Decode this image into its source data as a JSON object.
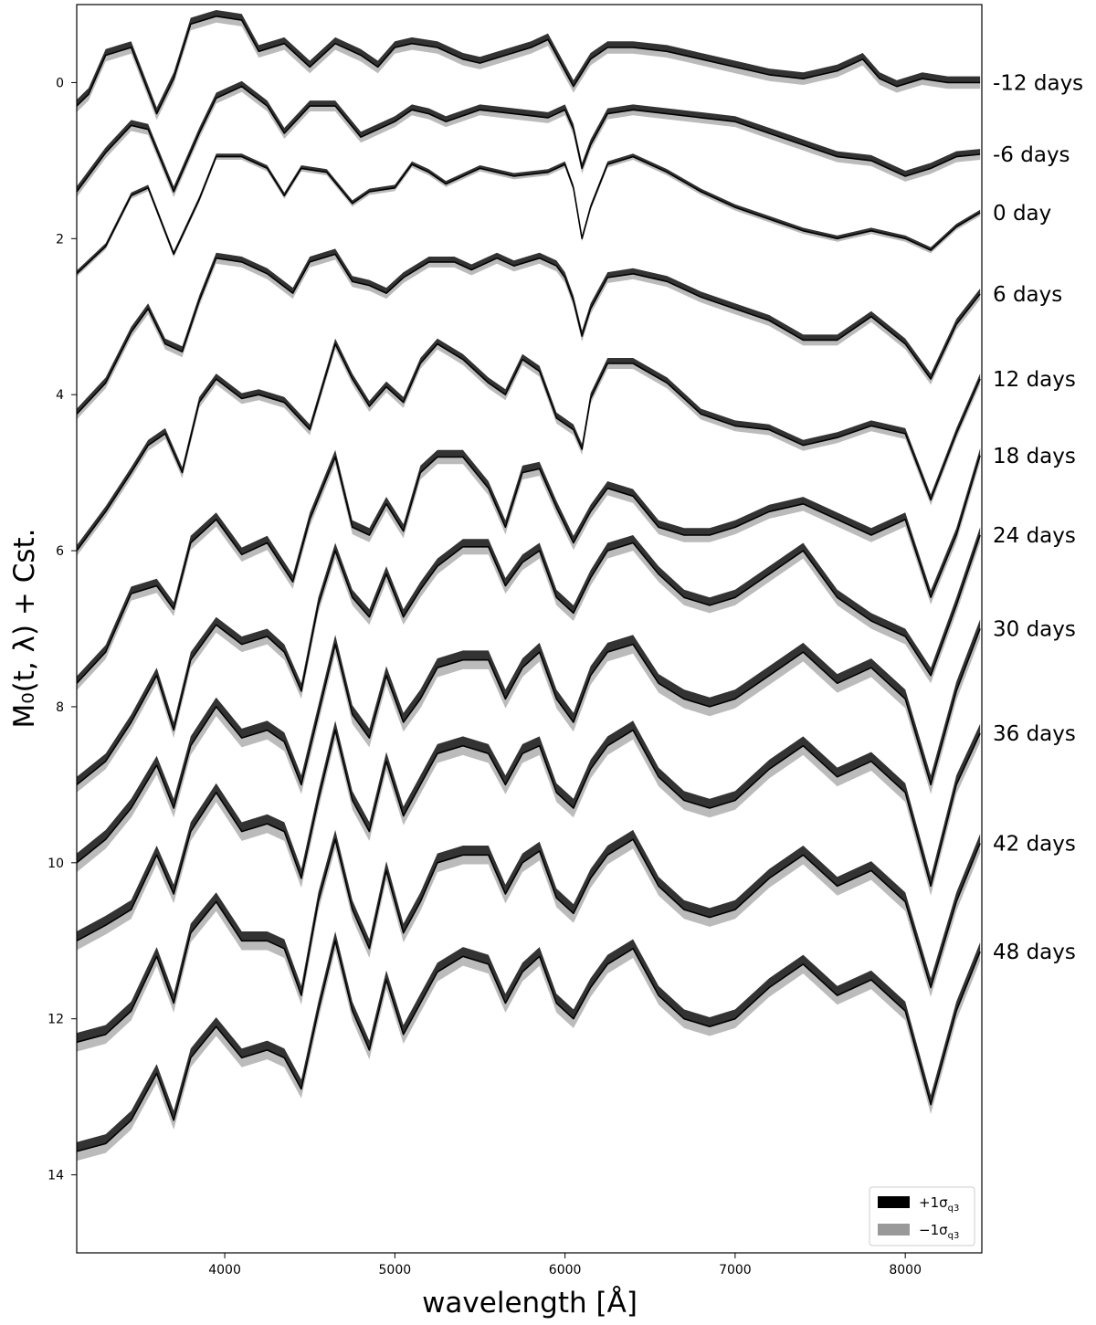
{
  "chart_data": {
    "type": "line",
    "title": "",
    "xlabel": "wavelength [Å]",
    "ylabel": "M₀(t, λ) + Cst.",
    "xlim": [
      3130,
      8450
    ],
    "ylim": [
      15.0,
      -1.0
    ],
    "y_inverted": true,
    "x_ticks": [
      4000,
      5000,
      6000,
      7000,
      8000
    ],
    "y_ticks": [
      0,
      2,
      4,
      6,
      8,
      10,
      12,
      14
    ],
    "grid": false,
    "legend_position": "bottom-right",
    "legend": [
      {
        "label": "+1σ_q3",
        "color": "#000000"
      },
      {
        "label": "−1σ_q3",
        "color": "#999999"
      }
    ],
    "legend_text": [
      {
        "main": "+1σ",
        "sub": "q3"
      },
      {
        "main": "−1σ",
        "sub": "q3"
      }
    ],
    "colors": {
      "plus_band": "#333333",
      "minus_band": "#bbbbbb",
      "line": "#000000"
    },
    "phase_labels": [
      {
        "text": "-12 days",
        "y": 0.0
      },
      {
        "text": "-6 days",
        "y": 0.92
      },
      {
        "text": "0 day",
        "y": 1.67
      },
      {
        "text": "6 days",
        "y": 2.71
      },
      {
        "text": "12 days",
        "y": 3.8
      },
      {
        "text": "18 days",
        "y": 4.78
      },
      {
        "text": "24 days",
        "y": 5.8
      },
      {
        "text": "30 days",
        "y": 7.0
      },
      {
        "text": "36 days",
        "y": 8.34
      },
      {
        "text": "42 days",
        "y": 9.75
      },
      {
        "text": "48 days",
        "y": 11.14
      }
    ],
    "spectra": [
      {
        "name": "-12 days",
        "x": [
          3130,
          3200,
          3300,
          3450,
          3600,
          3700,
          3800,
          3950,
          4100,
          4200,
          4350,
          4500,
          4650,
          4800,
          4900,
          5000,
          5100,
          5250,
          5400,
          5500,
          5650,
          5800,
          5900,
          6000,
          6050,
          6150,
          6250,
          6400,
          6600,
          6800,
          7000,
          7200,
          7400,
          7600,
          7750,
          7850,
          7950,
          8100,
          8250,
          8440
        ],
        "y": [
          0.3,
          0.15,
          -0.35,
          -0.45,
          0.4,
          -0.05,
          -0.75,
          -0.85,
          -0.8,
          -0.4,
          -0.5,
          -0.2,
          -0.5,
          -0.35,
          -0.2,
          -0.45,
          -0.5,
          -0.45,
          -0.3,
          -0.25,
          -0.35,
          -0.45,
          -0.55,
          -0.15,
          0.05,
          -0.3,
          -0.45,
          -0.45,
          -0.4,
          -0.3,
          -0.2,
          -0.1,
          -0.05,
          -0.15,
          -0.3,
          -0.05,
          0.05,
          -0.05,
          0.0,
          0.0
        ],
        "sp": 0.08,
        "sm": 0.08
      },
      {
        "name": "-6 days",
        "x": [
          3130,
          3300,
          3450,
          3550,
          3700,
          3850,
          3950,
          4100,
          4250,
          4350,
          4500,
          4650,
          4800,
          4900,
          5000,
          5100,
          5200,
          5300,
          5500,
          5700,
          5900,
          6000,
          6050,
          6100,
          6150,
          6250,
          6400,
          6600,
          6800,
          7000,
          7200,
          7400,
          7600,
          7800,
          8000,
          8150,
          8300,
          8440
        ],
        "y": [
          1.4,
          0.9,
          0.55,
          0.6,
          1.4,
          0.65,
          0.2,
          0.05,
          0.3,
          0.65,
          0.3,
          0.3,
          0.7,
          0.6,
          0.5,
          0.35,
          0.4,
          0.5,
          0.35,
          0.4,
          0.45,
          0.35,
          0.6,
          1.1,
          0.8,
          0.4,
          0.35,
          0.4,
          0.45,
          0.5,
          0.65,
          0.8,
          0.95,
          1.0,
          1.2,
          1.1,
          0.95,
          0.92
        ],
        "sp": 0.07,
        "sm": 0.07
      },
      {
        "name": "0 day",
        "x": [
          3130,
          3300,
          3450,
          3550,
          3700,
          3850,
          3950,
          4100,
          4250,
          4350,
          4450,
          4600,
          4750,
          4850,
          5000,
          5100,
          5200,
          5300,
          5500,
          5700,
          5900,
          6000,
          6050,
          6100,
          6150,
          6250,
          6400,
          6600,
          6800,
          7000,
          7200,
          7400,
          7600,
          7800,
          8000,
          8150,
          8300,
          8440
        ],
        "y": [
          2.45,
          2.1,
          1.45,
          1.35,
          2.2,
          1.5,
          0.95,
          0.95,
          1.1,
          1.45,
          1.1,
          1.15,
          1.55,
          1.4,
          1.35,
          1.05,
          1.15,
          1.3,
          1.1,
          1.2,
          1.15,
          1.05,
          1.35,
          2.0,
          1.6,
          1.05,
          0.95,
          1.15,
          1.4,
          1.6,
          1.75,
          1.9,
          2.0,
          1.9,
          2.0,
          2.15,
          1.85,
          1.67
        ],
        "sp": 0.04,
        "sm": 0.04
      },
      {
        "name": "6 days",
        "x": [
          3130,
          3300,
          3450,
          3550,
          3650,
          3750,
          3850,
          3950,
          4100,
          4250,
          4400,
          4500,
          4650,
          4750,
          4850,
          4950,
          5050,
          5200,
          5350,
          5450,
          5600,
          5700,
          5850,
          5950,
          6000,
          6050,
          6100,
          6150,
          6250,
          6400,
          6600,
          6800,
          7000,
          7200,
          7400,
          7600,
          7800,
          8000,
          8150,
          8300,
          8440
        ],
        "y": [
          4.25,
          3.85,
          3.2,
          2.9,
          3.35,
          3.45,
          2.8,
          2.25,
          2.3,
          2.45,
          2.7,
          2.3,
          2.2,
          2.55,
          2.6,
          2.7,
          2.5,
          2.3,
          2.3,
          2.4,
          2.25,
          2.35,
          2.25,
          2.35,
          2.5,
          2.8,
          3.25,
          2.9,
          2.5,
          2.45,
          2.55,
          2.75,
          2.9,
          3.05,
          3.3,
          3.3,
          3.0,
          3.35,
          3.8,
          3.1,
          2.71
        ],
        "sp": 0.07,
        "sm": 0.07
      },
      {
        "name": "12 days",
        "x": [
          3130,
          3300,
          3450,
          3550,
          3650,
          3750,
          3850,
          3950,
          4100,
          4200,
          4350,
          4500,
          4650,
          4750,
          4850,
          4950,
          5050,
          5150,
          5250,
          5400,
          5550,
          5650,
          5750,
          5850,
          5950,
          6050,
          6100,
          6150,
          6250,
          6400,
          6600,
          6800,
          7000,
          7200,
          7400,
          7600,
          7800,
          8000,
          8150,
          8300,
          8440
        ],
        "y": [
          6.0,
          5.5,
          5.0,
          4.65,
          4.5,
          5.0,
          4.1,
          3.8,
          4.05,
          4.0,
          4.1,
          4.45,
          3.35,
          3.8,
          4.15,
          3.9,
          4.1,
          3.6,
          3.35,
          3.55,
          3.85,
          4.0,
          3.55,
          3.7,
          4.3,
          4.45,
          4.7,
          4.05,
          3.6,
          3.6,
          3.85,
          4.25,
          4.4,
          4.45,
          4.65,
          4.55,
          4.4,
          4.5,
          5.35,
          4.5,
          3.8
        ],
        "sp": 0.07,
        "sm": 0.07
      },
      {
        "name": "18 days",
        "x": [
          3130,
          3300,
          3450,
          3600,
          3700,
          3800,
          3950,
          4100,
          4250,
          4400,
          4500,
          4650,
          4750,
          4850,
          4950,
          5050,
          5150,
          5250,
          5400,
          5550,
          5650,
          5750,
          5850,
          5950,
          6050,
          6150,
          6250,
          6400,
          6550,
          6700,
          6850,
          7000,
          7200,
          7400,
          7600,
          7800,
          8000,
          8150,
          8300,
          8440
        ],
        "y": [
          7.7,
          7.3,
          6.55,
          6.45,
          6.75,
          5.9,
          5.6,
          6.05,
          5.9,
          6.4,
          5.6,
          4.8,
          5.7,
          5.8,
          5.4,
          5.75,
          5.0,
          4.8,
          4.8,
          5.2,
          5.7,
          5.0,
          4.95,
          5.45,
          5.9,
          5.5,
          5.2,
          5.3,
          5.7,
          5.8,
          5.8,
          5.7,
          5.5,
          5.4,
          5.6,
          5.8,
          5.6,
          6.6,
          5.8,
          4.78
        ],
        "sp": 0.09,
        "sm": 0.09
      },
      {
        "name": "24 days",
        "x": [
          3130,
          3300,
          3450,
          3600,
          3700,
          3800,
          3950,
          4100,
          4250,
          4350,
          4450,
          4550,
          4650,
          4750,
          4850,
          4950,
          5050,
          5150,
          5250,
          5400,
          5550,
          5650,
          5750,
          5850,
          5950,
          6050,
          6150,
          6250,
          6400,
          6550,
          6700,
          6850,
          7000,
          7200,
          7400,
          7600,
          7800,
          8000,
          8150,
          8300,
          8440
        ],
        "y": [
          9.0,
          8.7,
          8.2,
          7.6,
          8.3,
          7.4,
          6.95,
          7.2,
          7.1,
          7.3,
          7.8,
          6.7,
          6.0,
          6.6,
          6.85,
          6.3,
          6.85,
          6.5,
          6.2,
          5.95,
          5.95,
          6.45,
          6.15,
          6.0,
          6.6,
          6.8,
          6.35,
          6.0,
          5.9,
          6.3,
          6.6,
          6.7,
          6.6,
          6.3,
          6.0,
          6.6,
          6.9,
          7.1,
          7.6,
          6.7,
          5.8
        ],
        "sp": 0.1,
        "sm": 0.1
      },
      {
        "name": "30 days",
        "x": [
          3130,
          3300,
          3450,
          3600,
          3700,
          3800,
          3950,
          4100,
          4250,
          4350,
          4450,
          4550,
          4650,
          4750,
          4850,
          4950,
          5050,
          5150,
          5250,
          5400,
          5550,
          5650,
          5750,
          5850,
          5950,
          6050,
          6150,
          6250,
          6400,
          6550,
          6700,
          6850,
          7000,
          7200,
          7400,
          7600,
          7800,
          8000,
          8150,
          8300,
          8440
        ],
        "y": [
          10.0,
          9.7,
          9.3,
          8.75,
          9.3,
          8.5,
          8.0,
          8.4,
          8.3,
          8.45,
          9.0,
          8.1,
          7.2,
          8.1,
          8.4,
          7.6,
          8.2,
          7.9,
          7.5,
          7.4,
          7.4,
          7.9,
          7.5,
          7.3,
          7.9,
          8.2,
          7.6,
          7.3,
          7.2,
          7.7,
          7.9,
          8.0,
          7.9,
          7.6,
          7.3,
          7.7,
          7.5,
          7.9,
          9.0,
          7.8,
          7.0
        ],
        "sp": 0.12,
        "sm": 0.12
      },
      {
        "name": "36 days",
        "x": [
          3130,
          3300,
          3450,
          3600,
          3700,
          3800,
          3950,
          4100,
          4250,
          4350,
          4450,
          4550,
          4650,
          4750,
          4850,
          4950,
          5050,
          5150,
          5250,
          5400,
          5550,
          5650,
          5750,
          5850,
          5950,
          6050,
          6150,
          6250,
          6400,
          6550,
          6700,
          6850,
          7000,
          7200,
          7400,
          7600,
          7800,
          8000,
          8150,
          8300,
          8440
        ],
        "y": [
          11.0,
          10.8,
          10.6,
          9.9,
          10.4,
          9.6,
          9.1,
          9.6,
          9.5,
          9.6,
          10.2,
          9.2,
          8.3,
          9.2,
          9.6,
          8.7,
          9.4,
          9.0,
          8.6,
          8.5,
          8.6,
          9.0,
          8.6,
          8.5,
          9.1,
          9.3,
          8.8,
          8.5,
          8.3,
          8.9,
          9.2,
          9.3,
          9.2,
          8.8,
          8.5,
          8.9,
          8.7,
          9.1,
          10.3,
          9.0,
          8.34
        ],
        "sp": 0.12,
        "sm": 0.12
      },
      {
        "name": "42 days",
        "x": [
          3130,
          3300,
          3450,
          3600,
          3700,
          3800,
          3950,
          4100,
          4250,
          4350,
          4450,
          4550,
          4650,
          4750,
          4850,
          4950,
          5050,
          5150,
          5250,
          5400,
          5550,
          5650,
          5750,
          5850,
          5950,
          6050,
          6150,
          6250,
          6400,
          6550,
          6700,
          6850,
          7000,
          7200,
          7400,
          7600,
          7800,
          8000,
          8150,
          8300,
          8440
        ],
        "y": [
          12.3,
          12.2,
          11.9,
          11.2,
          11.8,
          10.9,
          10.5,
          11.0,
          11.0,
          11.1,
          11.7,
          10.5,
          9.7,
          10.6,
          11.1,
          10.1,
          10.9,
          10.5,
          10.0,
          9.9,
          9.9,
          10.4,
          10.0,
          9.85,
          10.45,
          10.65,
          10.2,
          9.9,
          9.7,
          10.3,
          10.6,
          10.7,
          10.6,
          10.2,
          9.9,
          10.3,
          10.1,
          10.5,
          11.6,
          10.5,
          9.75
        ],
        "sp": 0.12,
        "sm": 0.12
      },
      {
        "name": "48 days",
        "x": [
          3130,
          3300,
          3450,
          3600,
          3700,
          3800,
          3950,
          4100,
          4250,
          4350,
          4450,
          4550,
          4650,
          4750,
          4850,
          4950,
          5050,
          5150,
          5250,
          5400,
          5550,
          5650,
          5750,
          5850,
          5950,
          6050,
          6150,
          6250,
          6400,
          6550,
          6700,
          6850,
          7000,
          7200,
          7400,
          7600,
          7800,
          8000,
          8150,
          8300,
          8440
        ],
        "y": [
          13.7,
          13.6,
          13.3,
          12.7,
          13.3,
          12.5,
          12.1,
          12.5,
          12.4,
          12.5,
          12.9,
          11.9,
          11.0,
          11.9,
          12.4,
          11.5,
          12.2,
          11.8,
          11.4,
          11.2,
          11.3,
          11.8,
          11.4,
          11.2,
          11.8,
          12.0,
          11.6,
          11.3,
          11.1,
          11.7,
          12.0,
          12.1,
          12.0,
          11.6,
          11.3,
          11.7,
          11.5,
          11.9,
          13.1,
          11.9,
          11.14
        ],
        "sp": 0.12,
        "sm": 0.12
      }
    ]
  }
}
